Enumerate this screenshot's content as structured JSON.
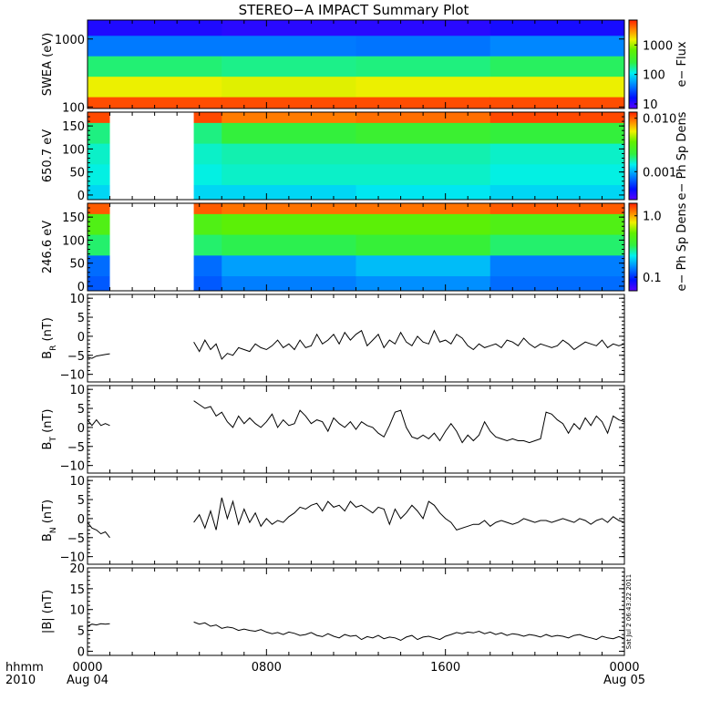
{
  "title": "STEREO−A IMPACT Summary Plot",
  "stamp": "Sat Jul  2 06:43:22 2011",
  "x_axis": {
    "row1_label": "hhmm",
    "row2_label": "2010",
    "ticks": [
      {
        "hours": 0,
        "time": "0000",
        "date": "Aug 04"
      },
      {
        "hours": 8,
        "time": "0800",
        "date": ""
      },
      {
        "hours": 16,
        "time": "1600",
        "date": ""
      },
      {
        "hours": 24,
        "time": "0000",
        "date": "Aug 05"
      }
    ],
    "range_hours": [
      0,
      24
    ]
  },
  "chart_data": [
    {
      "type": "heatmap",
      "panel": "swea",
      "ylabel": "SWEA (eV)",
      "yscale": "log",
      "ylim": [
        95,
        1900
      ],
      "yticks": [
        100,
        1000
      ],
      "ytick_labels": [
        "100",
        "1000"
      ],
      "colorbar": {
        "label": "e− Flux",
        "scale": "log",
        "range": [
          7,
          7000
        ],
        "ticks": [
          10,
          100,
          1000
        ],
        "tick_labels": [
          "10",
          "100",
          "1000"
        ]
      },
      "x_hours": [
        0,
        6,
        12,
        18,
        24
      ],
      "y_energy_ev": [
        100,
        200,
        400,
        800,
        1600
      ],
      "z_flux": [
        [
          5000,
          5000,
          5000,
          5000,
          5000
        ],
        [
          1500,
          1400,
          1500,
          1500,
          1400
        ],
        [
          200,
          180,
          190,
          220,
          210
        ],
        [
          40,
          40,
          38,
          45,
          42
        ],
        [
          12,
          11,
          11,
          13,
          12
        ]
      ]
    },
    {
      "type": "heatmap",
      "panel": "pad650",
      "ylabel": "650.7 eV",
      "ylim": [
        -10,
        180
      ],
      "yticks": [
        0,
        50,
        100,
        150
      ],
      "ytick_labels": [
        "0",
        "50",
        "100",
        "150"
      ],
      "colorbar": {
        "label": "e− Ph Sp Dens",
        "scale": "log",
        "range": [
          0.0003,
          0.013
        ],
        "ticks": [
          0.001,
          0.01
        ],
        "tick_labels": [
          "0.001",
          "0.010"
        ]
      },
      "data_gap_hours": [
        1.0,
        4.75
      ],
      "pitch_angle_deg": [
        0,
        45,
        90,
        135,
        180
      ],
      "x_hours": [
        0,
        6,
        12,
        18,
        24
      ],
      "z_density": [
        [
          0.0012,
          0.0012,
          0.0013,
          0.0012,
          0.0011
        ],
        [
          0.0014,
          0.0015,
          0.0015,
          0.0014,
          0.0013
        ],
        [
          0.0015,
          0.0016,
          0.0016,
          0.0015,
          0.0014
        ],
        [
          0.0018,
          0.0022,
          0.0024,
          0.0022,
          0.002
        ],
        [
          0.011,
          0.009,
          0.0095,
          0.011,
          0.01
        ]
      ]
    },
    {
      "type": "heatmap",
      "panel": "pad246",
      "ylabel": "246.6 eV",
      "ylim": [
        -10,
        180
      ],
      "yticks": [
        0,
        50,
        100,
        150
      ],
      "ytick_labels": [
        "0",
        "50",
        "100",
        "150"
      ],
      "colorbar": {
        "label": "e− Ph Sp Dens",
        "scale": "log",
        "range": [
          0.06,
          1.6
        ],
        "ticks": [
          0.1,
          1.0
        ],
        "tick_labels": [
          "0.1",
          "1.0"
        ]
      },
      "data_gap_hours": [
        1.0,
        4.75
      ],
      "pitch_angle_deg": [
        0,
        45,
        90,
        135,
        180
      ],
      "x_hours": [
        0,
        6,
        12,
        18,
        24
      ],
      "z_density": [
        [
          0.12,
          0.14,
          0.15,
          0.13,
          0.12
        ],
        [
          0.13,
          0.16,
          0.18,
          0.14,
          0.12
        ],
        [
          0.3,
          0.32,
          0.35,
          0.3,
          0.28
        ],
        [
          0.45,
          0.5,
          0.5,
          0.45,
          0.42
        ],
        [
          1.3,
          1.2,
          1.2,
          1.3,
          1.2
        ]
      ]
    },
    {
      "type": "line",
      "panel": "br",
      "ylabel": "B",
      "ylabel_sub": "R",
      "ylabel_unit": " (nT)",
      "ylim": [
        -12,
        11
      ],
      "yticks": [
        -10,
        -5,
        0,
        5,
        10
      ],
      "ytick_labels": [
        "−10",
        "−5",
        "0",
        "5",
        "10"
      ],
      "segments": [
        {
          "x_hours": [
            0.0,
            0.2,
            0.4,
            0.6,
            0.8,
            1.0
          ],
          "y_nT": [
            -5.5,
            -5.8,
            -5.2,
            -5.0,
            -4.8,
            -4.6
          ]
        },
        {
          "x_hours": [
            4.75,
            5.0,
            5.25,
            5.5,
            5.75,
            6.0,
            6.25,
            6.5,
            6.75,
            7.0,
            7.25,
            7.5,
            7.75,
            8.0,
            8.25,
            8.5,
            8.75,
            9.0,
            9.25,
            9.5,
            9.75,
            10.0,
            10.25,
            10.5,
            10.75,
            11.0,
            11.25,
            11.5,
            11.75,
            12.0,
            12.25,
            12.5,
            12.75,
            13.0,
            13.25,
            13.5,
            13.75,
            14.0,
            14.25,
            14.5,
            14.75,
            15.0,
            15.25,
            15.5,
            15.75,
            16.0,
            16.25,
            16.5,
            16.75,
            17.0,
            17.25,
            17.5,
            17.75,
            18.0,
            18.25,
            18.5,
            18.75,
            19.0,
            19.25,
            19.5,
            19.75,
            20.0,
            20.25,
            20.5,
            20.75,
            21.0,
            21.25,
            21.5,
            21.75,
            22.0,
            22.25,
            22.5,
            22.75,
            23.0,
            23.25,
            23.5,
            23.75,
            24.0
          ],
          "y_nT": [
            -1.5,
            -4.0,
            -1.0,
            -3.5,
            -2.0,
            -6.0,
            -4.5,
            -5.0,
            -3.0,
            -3.5,
            -4.0,
            -2.0,
            -3.0,
            -3.5,
            -2.5,
            -1.0,
            -3.0,
            -2.0,
            -3.5,
            -1.0,
            -3.0,
            -2.5,
            0.5,
            -2.0,
            -1.0,
            0.5,
            -2.0,
            1.0,
            -1.0,
            0.5,
            1.5,
            -2.5,
            -1.0,
            0.5,
            -3.0,
            -1.0,
            -2.0,
            1.0,
            -1.5,
            -2.5,
            0.0,
            -1.5,
            -2.0,
            1.5,
            -1.5,
            -1.0,
            -2.0,
            0.5,
            -0.5,
            -2.5,
            -3.5,
            -2.0,
            -3.0,
            -2.5,
            -2.0,
            -3.0,
            -1.0,
            -1.5,
            -2.5,
            -0.5,
            -2.0,
            -3.0,
            -2.0,
            -2.5,
            -3.0,
            -2.5,
            -1.0,
            -2.0,
            -3.5,
            -2.5,
            -1.5,
            -2.0,
            -2.5,
            -1.0,
            -3.0,
            -2.0,
            -2.5,
            -2.0
          ]
        }
      ]
    },
    {
      "type": "line",
      "panel": "bt",
      "ylabel": "B",
      "ylabel_sub": "T",
      "ylabel_unit": " (nT)",
      "ylim": [
        -12,
        11
      ],
      "yticks": [
        -10,
        -5,
        0,
        5,
        10
      ],
      "ytick_labels": [
        "−10",
        "−5",
        "0",
        "5",
        "10"
      ],
      "segments": [
        {
          "x_hours": [
            0.0,
            0.2,
            0.4,
            0.6,
            0.8,
            1.0
          ],
          "y_nT": [
            2.0,
            0.5,
            2.0,
            0.5,
            1.0,
            0.5
          ]
        },
        {
          "x_hours": [
            4.75,
            5.0,
            5.25,
            5.5,
            5.75,
            6.0,
            6.25,
            6.5,
            6.75,
            7.0,
            7.25,
            7.5,
            7.75,
            8.0,
            8.25,
            8.5,
            8.75,
            9.0,
            9.25,
            9.5,
            9.75,
            10.0,
            10.25,
            10.5,
            10.75,
            11.0,
            11.25,
            11.5,
            11.75,
            12.0,
            12.25,
            12.5,
            12.75,
            13.0,
            13.25,
            13.5,
            13.75,
            14.0,
            14.25,
            14.5,
            14.75,
            15.0,
            15.25,
            15.5,
            15.75,
            16.0,
            16.25,
            16.5,
            16.75,
            17.0,
            17.25,
            17.5,
            17.75,
            18.0,
            18.25,
            18.5,
            18.75,
            19.0,
            19.25,
            19.5,
            19.75,
            20.0,
            20.25,
            20.5,
            20.75,
            21.0,
            21.25,
            21.5,
            21.75,
            22.0,
            22.25,
            22.5,
            22.75,
            23.0,
            23.25,
            23.5,
            23.75,
            24.0
          ],
          "y_nT": [
            7.0,
            6.0,
            5.0,
            5.5,
            3.0,
            4.0,
            1.5,
            0.0,
            3.0,
            1.0,
            2.5,
            1.0,
            0.0,
            1.5,
            3.5,
            0.0,
            2.0,
            0.5,
            1.0,
            4.5,
            3.0,
            1.0,
            2.0,
            1.5,
            -1.0,
            2.5,
            1.0,
            0.0,
            1.5,
            -0.5,
            1.5,
            0.5,
            0.0,
            -1.5,
            -2.5,
            0.5,
            4.0,
            4.5,
            0.0,
            -2.5,
            -3.0,
            -2.0,
            -3.0,
            -1.5,
            -3.5,
            -1.0,
            1.0,
            -1.0,
            -4.0,
            -2.0,
            -3.5,
            -2.0,
            1.5,
            -1.0,
            -2.5,
            -3.0,
            -3.5,
            -3.0,
            -3.5,
            -3.5,
            -4.0,
            -3.5,
            -3.0,
            4.0,
            3.5,
            2.0,
            1.0,
            -1.5,
            1.0,
            -0.5,
            2.5,
            0.5,
            3.0,
            1.5,
            -1.5,
            3.0,
            2.0,
            1.5
          ]
        }
      ]
    },
    {
      "type": "line",
      "panel": "bn",
      "ylabel": "B",
      "ylabel_sub": "N",
      "ylabel_unit": " (nT)",
      "ylim": [
        -12,
        11
      ],
      "yticks": [
        -10,
        -5,
        0,
        5,
        10
      ],
      "ytick_labels": [
        "−10",
        "−5",
        "0",
        "5",
        "10"
      ],
      "segments": [
        {
          "x_hours": [
            0.0,
            0.2,
            0.4,
            0.6,
            0.8,
            1.0
          ],
          "y_nT": [
            -1.0,
            -2.5,
            -3.0,
            -4.0,
            -3.5,
            -5.0
          ]
        },
        {
          "x_hours": [
            4.75,
            5.0,
            5.25,
            5.5,
            5.75,
            6.0,
            6.25,
            6.5,
            6.75,
            7.0,
            7.25,
            7.5,
            7.75,
            8.0,
            8.25,
            8.5,
            8.75,
            9.0,
            9.25,
            9.5,
            9.75,
            10.0,
            10.25,
            10.5,
            10.75,
            11.0,
            11.25,
            11.5,
            11.75,
            12.0,
            12.25,
            12.5,
            12.75,
            13.0,
            13.25,
            13.5,
            13.75,
            14.0,
            14.25,
            14.5,
            14.75,
            15.0,
            15.25,
            15.5,
            15.75,
            16.0,
            16.25,
            16.5,
            16.75,
            17.0,
            17.25,
            17.5,
            17.75,
            18.0,
            18.25,
            18.5,
            18.75,
            19.0,
            19.25,
            19.5,
            19.75,
            20.0,
            20.25,
            20.5,
            20.75,
            21.0,
            21.25,
            21.5,
            21.75,
            22.0,
            22.25,
            22.5,
            22.75,
            23.0,
            23.25,
            23.5,
            23.75,
            24.0
          ],
          "y_nT": [
            -1.0,
            1.0,
            -2.5,
            2.0,
            -3.0,
            5.5,
            0.0,
            4.5,
            -1.5,
            2.5,
            -1.0,
            1.5,
            -2.0,
            0.0,
            -1.5,
            -0.5,
            -1.0,
            0.5,
            1.5,
            3.0,
            2.5,
            3.5,
            4.0,
            2.0,
            4.5,
            3.0,
            3.5,
            2.0,
            4.5,
            3.0,
            3.5,
            2.5,
            1.5,
            3.0,
            2.5,
            -1.5,
            2.5,
            0.0,
            1.5,
            3.5,
            2.0,
            0.0,
            4.5,
            3.5,
            1.5,
            0.0,
            -1.0,
            -3.0,
            -2.5,
            -2.0,
            -1.5,
            -1.5,
            -0.5,
            -2.0,
            -1.0,
            -0.5,
            -1.0,
            -1.5,
            -1.0,
            0.0,
            -0.5,
            -1.0,
            -0.5,
            -0.5,
            -1.0,
            -0.5,
            0.0,
            -0.5,
            -1.0,
            0.0,
            -0.5,
            -1.5,
            -0.5,
            0.0,
            -1.0,
            0.5,
            -0.5,
            -1.0
          ]
        }
      ]
    },
    {
      "type": "line",
      "panel": "bmag",
      "ylabel": "|B| (nT)",
      "ylim": [
        -1,
        20
      ],
      "yticks": [
        0,
        5,
        10,
        15,
        20
      ],
      "ytick_labels": [
        "0",
        "5",
        "10",
        "15",
        "20"
      ],
      "segments": [
        {
          "x_hours": [
            0.0,
            0.2,
            0.4,
            0.6,
            0.8,
            1.0
          ],
          "y_nT": [
            6.0,
            6.5,
            6.3,
            6.6,
            6.5,
            6.6
          ]
        },
        {
          "x_hours": [
            4.75,
            5.0,
            5.25,
            5.5,
            5.75,
            6.0,
            6.25,
            6.5,
            6.75,
            7.0,
            7.25,
            7.5,
            7.75,
            8.0,
            8.25,
            8.5,
            8.75,
            9.0,
            9.25,
            9.5,
            9.75,
            10.0,
            10.25,
            10.5,
            10.75,
            11.0,
            11.25,
            11.5,
            11.75,
            12.0,
            12.25,
            12.5,
            12.75,
            13.0,
            13.25,
            13.5,
            13.75,
            14.0,
            14.25,
            14.5,
            14.75,
            15.0,
            15.25,
            15.5,
            15.75,
            16.0,
            16.25,
            16.5,
            16.75,
            17.0,
            17.25,
            17.5,
            17.75,
            18.0,
            18.25,
            18.5,
            18.75,
            19.0,
            19.25,
            19.5,
            19.75,
            20.0,
            20.25,
            20.5,
            20.75,
            21.0,
            21.25,
            21.5,
            21.75,
            22.0,
            22.25,
            22.5,
            22.75,
            23.0,
            23.25,
            23.5,
            23.75,
            24.0
          ],
          "y_nT": [
            7.0,
            6.5,
            6.8,
            6.0,
            6.3,
            5.5,
            5.8,
            5.6,
            5.0,
            5.3,
            5.0,
            4.8,
            5.2,
            4.6,
            4.2,
            4.5,
            4.0,
            4.6,
            4.3,
            3.8,
            4.0,
            4.5,
            3.8,
            3.5,
            4.2,
            3.6,
            3.2,
            4.0,
            3.6,
            3.8,
            2.8,
            3.5,
            3.2,
            3.8,
            3.0,
            3.4,
            3.2,
            2.6,
            3.4,
            3.8,
            2.8,
            3.4,
            3.6,
            3.2,
            2.8,
            3.6,
            4.0,
            4.5,
            4.2,
            4.6,
            4.4,
            4.8,
            4.2,
            4.6,
            4.0,
            4.4,
            3.8,
            4.2,
            4.0,
            3.6,
            4.0,
            3.8,
            3.4,
            4.0,
            3.5,
            3.8,
            3.6,
            3.2,
            3.8,
            4.0,
            3.5,
            3.2,
            2.8,
            3.6,
            3.2,
            3.0,
            3.5,
            3.0
          ]
        }
      ]
    }
  ]
}
